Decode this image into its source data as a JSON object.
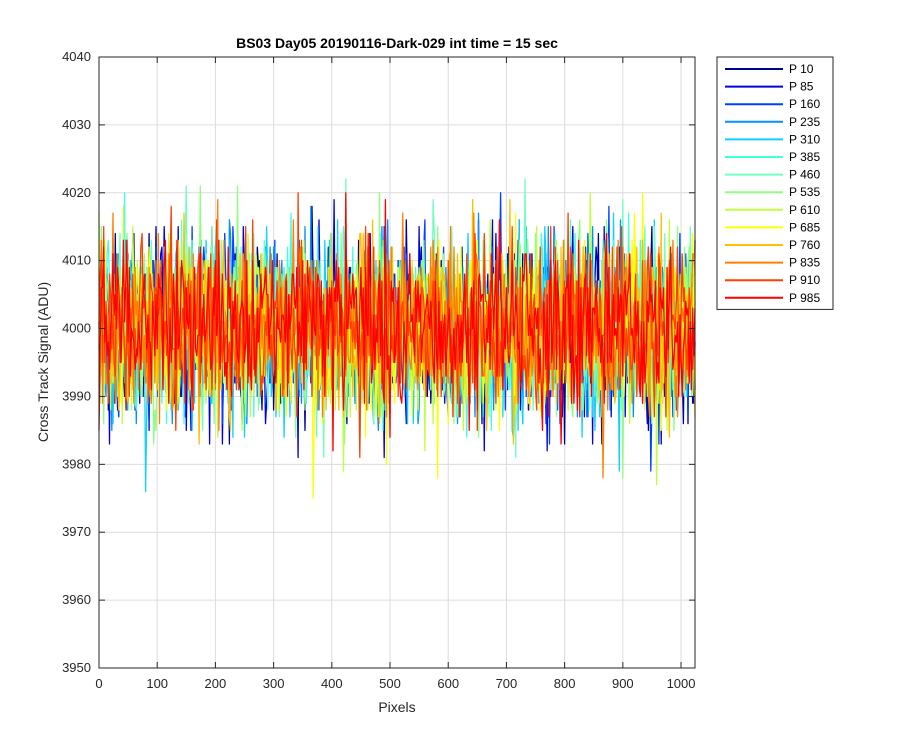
{
  "chart_data": {
    "type": "line",
    "title": "BS03 Day05 20190116-Dark-029 int time = 15 sec",
    "xlabel": "Pixels",
    "ylabel": "Cross Track Signal (ADU)",
    "xlim": [
      0,
      1024
    ],
    "ylim": [
      3950,
      4040
    ],
    "xticks": [
      0,
      100,
      200,
      300,
      400,
      500,
      600,
      700,
      800,
      900,
      1000
    ],
    "yticks": [
      3950,
      3960,
      3970,
      3980,
      3990,
      4000,
      4010,
      4020,
      4030,
      4040
    ],
    "grid": true,
    "legend_position": "outside-top-right",
    "signal_level": 4000,
    "series": [
      {
        "name": "P 10",
        "color": "#00008f",
        "spread": 6.5
      },
      {
        "name": "P 85",
        "color": "#0000e0",
        "spread": 6.5
      },
      {
        "name": "P 160",
        "color": "#0040ff",
        "spread": 6.5
      },
      {
        "name": "P 235",
        "color": "#0090ff",
        "spread": 6.5
      },
      {
        "name": "P 310",
        "color": "#10d0ff",
        "spread": 6.5
      },
      {
        "name": "P 385",
        "color": "#40ffe0",
        "spread": 6.5
      },
      {
        "name": "P 460",
        "color": "#70ffc0",
        "spread": 6.5
      },
      {
        "name": "P 535",
        "color": "#90ff80",
        "spread": 6.5
      },
      {
        "name": "P 610",
        "color": "#c0ff40",
        "spread": 6.5
      },
      {
        "name": "P 685",
        "color": "#ffff00",
        "spread": 6.5
      },
      {
        "name": "P 760",
        "color": "#ffc000",
        "spread": 6.5
      },
      {
        "name": "P 835",
        "color": "#ff8000",
        "spread": 6.5
      },
      {
        "name": "P 910",
        "color": "#ff4000",
        "spread": 6.5
      },
      {
        "name": "P 985",
        "color": "#ff0000",
        "spread": 6.5
      }
    ]
  }
}
